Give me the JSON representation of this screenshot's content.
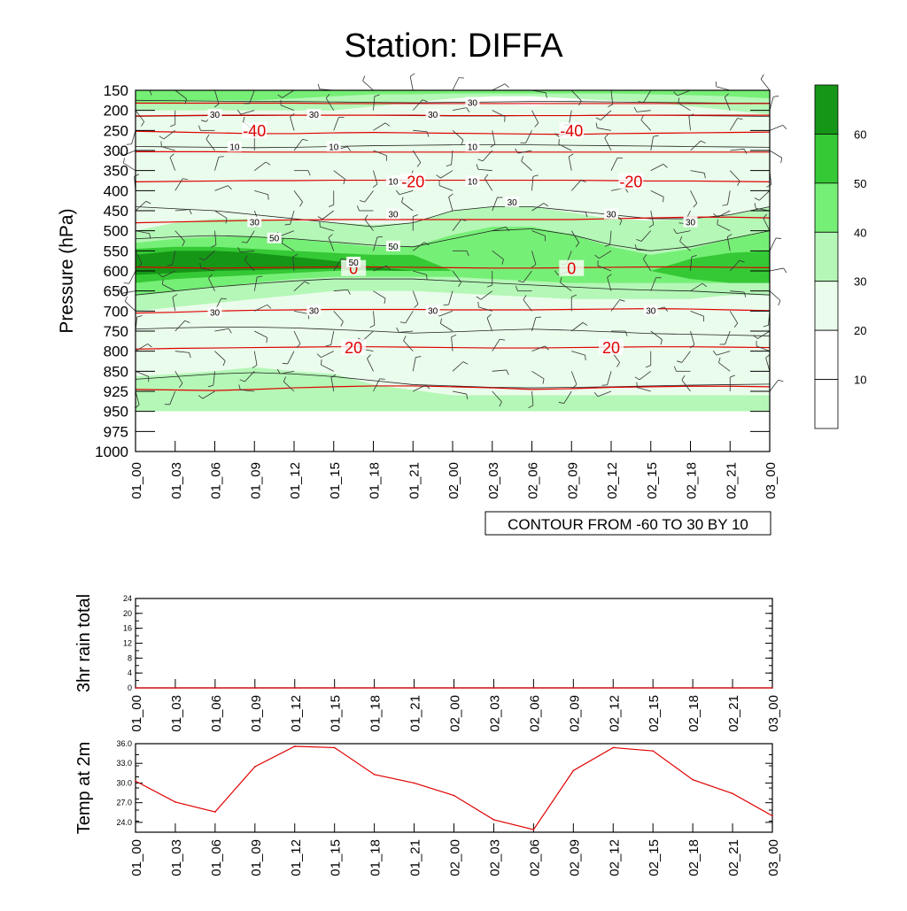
{
  "title": "Station: DIFFA",
  "chart_data": [
    {
      "type": "heatmap",
      "name": "time-pressure cross section",
      "title": "Station: DIFFA",
      "ylabel": "Pressure (hPa)",
      "xlabel": "",
      "yticks": [
        "150",
        "200",
        "250",
        "300",
        "350",
        "400",
        "450",
        "500",
        "550",
        "600",
        "650",
        "700",
        "750",
        "800",
        "850",
        "925",
        "950",
        "975",
        "1000"
      ],
      "xticks": [
        "01_00",
        "01_03",
        "01_06",
        "01_09",
        "01_12",
        "01_15",
        "01_18",
        "01_21",
        "02_00",
        "02_03",
        "02_06",
        "02_09",
        "02_12",
        "02_15",
        "02_18",
        "02_21",
        "03_00"
      ],
      "fill_colorbar": {
        "labels": [
          "10",
          "20",
          "30",
          "40",
          "50",
          "60"
        ],
        "colors": [
          "#ffffff",
          "#ffffff",
          "#eafceb",
          "#b4f7b6",
          "#76ef76",
          "#35c935",
          "#169616"
        ]
      },
      "fill_contours": [
        {
          "level": "30",
          "color": "#eafceb",
          "y": [
            30,
            30,
            30,
            30,
            28,
            28,
            28,
            28,
            30,
            30,
            30,
            30,
            30,
            30,
            30,
            30,
            30
          ]
        },
        {
          "level": "30-40",
          "color": "#b4f7b6",
          "y": [
            20,
            20,
            40,
            40,
            40,
            30,
            35,
            35,
            40,
            45,
            45,
            40,
            35,
            30,
            30,
            30,
            30
          ]
        },
        {
          "level": "40-50",
          "color": "#76ef76",
          "y": [
            40,
            40,
            45,
            45,
            40,
            40,
            35,
            35,
            45,
            50,
            50,
            45,
            40,
            40,
            40,
            40,
            40
          ]
        },
        {
          "level": "50-60",
          "color": "#35c935",
          "y": [
            50,
            55,
            55,
            55,
            50,
            50,
            45,
            45,
            40,
            40,
            40,
            40,
            40,
            40,
            45,
            50,
            50
          ]
        },
        {
          "level": ">60",
          "color": "#169616",
          "y": [
            60,
            60,
            60,
            55,
            50,
            45,
            40,
            40,
            40,
            40,
            40,
            40,
            40,
            40,
            40,
            40,
            40
          ]
        }
      ],
      "line_contours": [
        {
          "label": "-40",
          "y": [
            252,
            254,
            256,
            258,
            258,
            256,
            255,
            256,
            257,
            258,
            259,
            260,
            258,
            257,
            256,
            255,
            254
          ]
        },
        {
          "label": "-20",
          "y": [
            378,
            377,
            376,
            375,
            375,
            374,
            374,
            374,
            374,
            374,
            374,
            374,
            375,
            376,
            376,
            377,
            378
          ]
        },
        {
          "label": "0",
          "y": [
            590,
            592,
            593,
            592,
            591,
            590,
            590,
            591,
            592,
            593,
            593,
            592,
            591,
            590,
            590,
            591,
            592
          ]
        },
        {
          "label": "20",
          "y": [
            795,
            793,
            792,
            791,
            790,
            789,
            789,
            790,
            791,
            792,
            792,
            791,
            790,
            789,
            789,
            790,
            791
          ]
        }
      ],
      "contour_labels": [
        "-40",
        "-40",
        "-20",
        "-20",
        "0",
        "0",
        "20",
        "20",
        "30",
        "30",
        "30",
        "30",
        "10",
        "10",
        "10",
        "10",
        "10",
        "50",
        "50",
        "50",
        "30",
        "30",
        "30",
        "30",
        "30",
        "30",
        "30",
        "30",
        "30"
      ],
      "info_label": "CONTOUR FROM -60 TO 30 BY 10"
    },
    {
      "type": "line",
      "name": "rain total",
      "ylabel": "3hr rain total",
      "yticks": [
        "0",
        "4",
        "8",
        "12",
        "16",
        "20",
        "24"
      ],
      "ylim": [
        0,
        24
      ],
      "xticks": [
        "01_00",
        "01_03",
        "01_06",
        "01_09",
        "01_12",
        "01_15",
        "01_18",
        "01_21",
        "02_00",
        "02_03",
        "02_06",
        "02_09",
        "02_12",
        "02_15",
        "02_18",
        "02_21",
        "03_00"
      ],
      "x": [
        "01_00",
        "01_03",
        "01_06",
        "01_09",
        "01_12",
        "01_15",
        "01_18",
        "01_21",
        "02_00",
        "02_03",
        "02_06",
        "02_09",
        "02_12",
        "02_15",
        "02_18",
        "02_21",
        "03_00"
      ],
      "values": [
        0,
        0,
        0,
        0,
        0,
        0,
        0,
        0,
        0,
        0,
        0,
        0,
        0,
        0,
        0,
        0,
        0
      ]
    },
    {
      "type": "line",
      "name": "temperature",
      "ylabel": "Temp at 2m",
      "yticks": [
        "24.0",
        "27.0",
        "30.0",
        "33.0",
        "36.0"
      ],
      "ylim": [
        22.5,
        36.0
      ],
      "xticks": [
        "01_00",
        "01_03",
        "01_06",
        "01_09",
        "01_12",
        "01_15",
        "01_18",
        "01_21",
        "02_00",
        "02_03",
        "02_06",
        "02_09",
        "02_12",
        "02_15",
        "02_18",
        "02_21",
        "03_00"
      ],
      "x": [
        "01_00",
        "01_03",
        "01_06",
        "01_09",
        "01_12",
        "01_15",
        "01_18",
        "01_21",
        "02_00",
        "02_03",
        "02_06",
        "02_09",
        "02_12",
        "02_15",
        "02_18",
        "02_21",
        "03_00"
      ],
      "values": [
        30.3,
        27.1,
        25.6,
        32.5,
        35.6,
        35.4,
        31.3,
        30.0,
        28.1,
        24.4,
        22.9,
        31.9,
        35.4,
        34.9,
        30.5,
        28.4,
        25.0
      ],
      "line_color": "#e00000"
    }
  ]
}
